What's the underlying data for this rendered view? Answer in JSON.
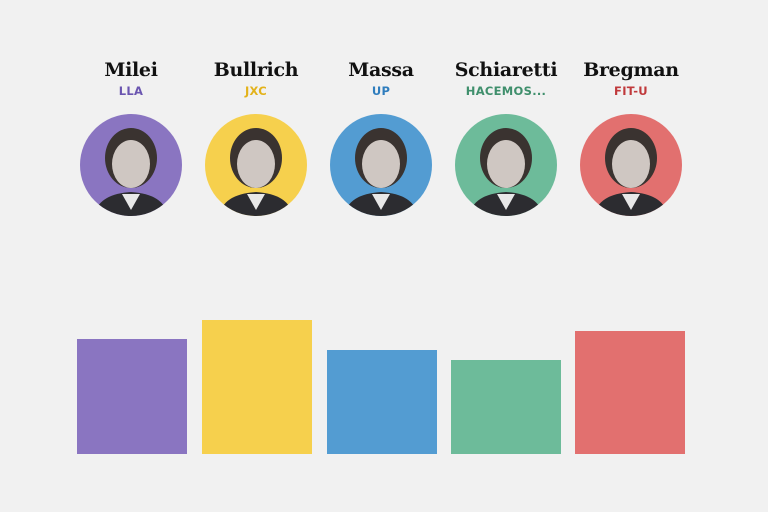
{
  "candidates": [
    {
      "name": "Milei",
      "party": "LLA",
      "color": "#8a75c1",
      "party_color": "#6a55b0",
      "icon": "avatar-photo"
    },
    {
      "name": "Bullrich",
      "party": "JXC",
      "color": "#f6d04d",
      "party_color": "#e3b21a",
      "icon": "avatar-photo"
    },
    {
      "name": "Massa",
      "party": "UP",
      "color": "#539cd2",
      "party_color": "#2f7dbd",
      "icon": "avatar-photo"
    },
    {
      "name": "Schiaretti",
      "party": "HACEMOS...",
      "color": "#6dbb9a",
      "party_color": "#3f8f6c",
      "icon": "avatar-photo"
    },
    {
      "name": "Bregman",
      "party": "FIT-U",
      "color": "#e2706f",
      "party_color": "#c0393b",
      "icon": "avatar-photo"
    }
  ],
  "chart_data": {
    "type": "bar",
    "categories": [
      "Milei",
      "Bullrich",
      "Massa",
      "Schiaretti",
      "Bregman"
    ],
    "values": [
      115,
      134,
      104,
      94,
      123
    ],
    "colors": [
      "#8a75c1",
      "#f6d04d",
      "#539cd2",
      "#6dbb9a",
      "#e2706f"
    ],
    "ylim": [
      0,
      140
    ],
    "grid": false,
    "legend": "none",
    "title": "",
    "xlabel": "",
    "ylabel": ""
  }
}
